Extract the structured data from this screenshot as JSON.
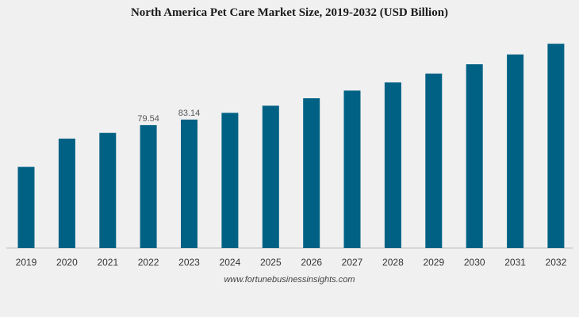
{
  "chart_data": {
    "type": "bar",
    "title": "North America Pet Care Market Size, 2019-2032 (USD Billion)",
    "categories": [
      "2019",
      "2020",
      "2021",
      "2022",
      "2023",
      "2024",
      "2025",
      "2026",
      "2027",
      "2028",
      "2029",
      "2030",
      "2031",
      "2032"
    ],
    "values": [
      52.5,
      70.8,
      74.5,
      79.54,
      83.14,
      87.5,
      92.1,
      96.9,
      101.9,
      107.2,
      112.9,
      118.9,
      125.3,
      132.2
    ],
    "data_labels": {
      "3": "79.54",
      "4": "83.14"
    },
    "xlabel": "",
    "ylabel": "",
    "ylim": [
      0,
      140
    ],
    "bar_color": "#006184",
    "grid": false
  },
  "source": "www.fortunebusinessinsights.com"
}
